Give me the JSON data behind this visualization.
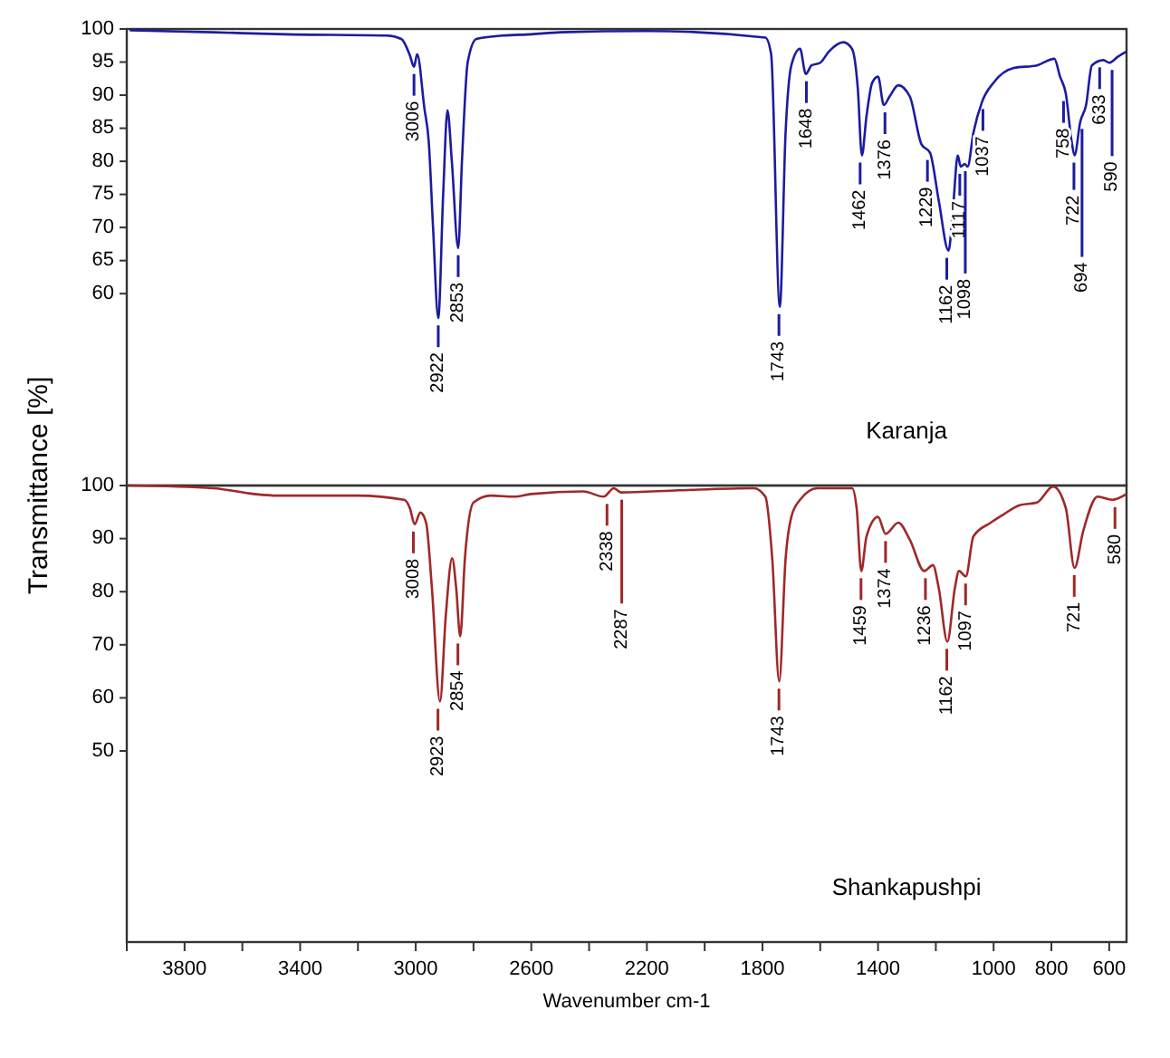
{
  "chart_data": [
    {
      "type": "line",
      "ylabel": "Transmittance [%]",
      "xlim": [
        4000,
        540
      ],
      "ylim": [
        31,
        100
      ],
      "yticks": [
        60,
        65,
        70,
        75,
        80,
        85,
        90,
        95,
        100
      ],
      "tick_labels": "y",
      "series": [
        {
          "color": "#1c1ca0",
          "x": [
            3990,
            3700,
            3450,
            3100,
            3050,
            3020,
            3006,
            2995,
            2970,
            2955,
            2940,
            2922,
            2905,
            2890,
            2875,
            2853,
            2840,
            2820,
            2790,
            2700,
            2600,
            2500,
            2200,
            1790,
            1770,
            1740,
            1720,
            1700,
            1670,
            1650,
            1630,
            1600,
            1570,
            1520,
            1490,
            1470,
            1456,
            1440,
            1420,
            1400,
            1380,
            1360,
            1330,
            1290,
            1250,
            1220,
            1190,
            1156,
            1140,
            1124,
            1114,
            1100,
            1090,
            1070,
            1040,
            1000,
            930,
            850,
            790,
            770,
            750,
            730,
            720,
            700,
            680,
            660,
            620,
            600,
            570,
            540
          ],
          "values": [
            99.8,
            99.5,
            99.2,
            99,
            98.5,
            96,
            94.3,
            96.2,
            88,
            83,
            70,
            56.3,
            75,
            87.7,
            80,
            66.9,
            80,
            95,
            98.5,
            99,
            99.2,
            99.5,
            99.7,
            98.7,
            96.2,
            58,
            84.3,
            94.5,
            97,
            93.2,
            94.5,
            94.9,
            96.6,
            98,
            97,
            91,
            80.9,
            86.8,
            91.9,
            92.8,
            88.5,
            89.8,
            91.5,
            89.8,
            82.6,
            81.3,
            74.1,
            66.5,
            73.2,
            80.9,
            79.2,
            79.6,
            79.2,
            84.3,
            89,
            91.9,
            94.1,
            94.5,
            95.5,
            92.8,
            90.2,
            83,
            80.9,
            86,
            88.5,
            94.5,
            95.3,
            94.9,
            95.8,
            96.6
          ]
        }
      ],
      "annotations": [
        {
          "text": "3006",
          "x": 3006,
          "y": 94.3
        },
        {
          "text": "2922",
          "x": 2922,
          "y": 56.3
        },
        {
          "text": "2853",
          "x": 2853,
          "y": 66.9
        },
        {
          "text": "1743",
          "x": 1743,
          "y": 58
        },
        {
          "text": "1648",
          "x": 1648,
          "y": 93.2
        },
        {
          "text": "1462",
          "x": 1462,
          "y": 80.9
        },
        {
          "text": "1376",
          "x": 1376,
          "y": 88.5
        },
        {
          "text": "1229",
          "x": 1229,
          "y": 81.3
        },
        {
          "text": "1162",
          "x": 1162,
          "y": 66.5
        },
        {
          "text": "1117",
          "x": 1117,
          "y": 79.2
        },
        {
          "text": "1098",
          "x": 1098,
          "y": 79.6
        },
        {
          "text": "1037",
          "x": 1037,
          "y": 89
        },
        {
          "text": "758",
          "x": 758,
          "y": 90.2
        },
        {
          "text": "722",
          "x": 722,
          "y": 80.9
        },
        {
          "text": "694",
          "x": 694,
          "y": 86
        },
        {
          "text": "633",
          "x": 633,
          "y": 95.3
        },
        {
          "text": "590",
          "x": 590,
          "y": 94.9
        },
        "Karanja"
      ]
    },
    {
      "type": "line",
      "xlabel": "Wavenumber cm-1",
      "xlim": [
        4000,
        540
      ],
      "xticks": [
        {
          "value": 4000,
          "label": null
        },
        3800,
        {
          "value": 3600,
          "label": null
        },
        3400,
        {
          "value": 3200,
          "label": null
        },
        3000,
        {
          "value": 2800,
          "label": null
        },
        2600,
        {
          "value": 2400,
          "label": null
        },
        2200,
        {
          "value": 2000,
          "label": null
        },
        1800,
        {
          "value": 1600,
          "label": null
        },
        1400,
        {
          "value": 1200,
          "label": null
        },
        1000,
        800,
        600
      ],
      "ylim": [
        14,
        100
      ],
      "yticks": [
        50,
        60,
        70,
        80,
        90,
        100
      ],
      "series": [
        {
          "color": "#a02828",
          "x": [
            3990,
            3700,
            3560,
            3480,
            3200,
            3040,
            3020,
            3004,
            2984,
            2964,
            2944,
            2916,
            2896,
            2874,
            2860,
            2846,
            2830,
            2800,
            2740,
            2660,
            2600,
            2420,
            2350,
            2314,
            2290,
            2090,
            1830,
            1790,
            1766,
            1742,
            1720,
            1700,
            1670,
            1610,
            1490,
            1474,
            1458,
            1440,
            1400,
            1374,
            1330,
            1290,
            1240,
            1210,
            1190,
            1160,
            1134,
            1120,
            1096,
            1070,
            1010,
            970,
            910,
            850,
            794,
            750,
            720,
            690,
            640,
            590,
            540
          ],
          "values": [
            100,
            99.5,
            98.4,
            98.1,
            98.1,
            97.3,
            95.7,
            92.7,
            94.9,
            93,
            80.7,
            59.3,
            75.4,
            86.3,
            80.7,
            71.6,
            86.1,
            96.8,
            98.1,
            97.9,
            98.4,
            98.9,
            97.9,
            99.5,
            98.7,
            99.1,
            99.5,
            97.9,
            86.1,
            63.1,
            86.1,
            94.1,
            97.3,
            99.5,
            99.5,
            95.7,
            83.9,
            90.4,
            94.1,
            90.9,
            93,
            89.8,
            83.9,
            85,
            80.7,
            70.6,
            80.7,
            83.9,
            82.9,
            90.4,
            93,
            94.4,
            96.3,
            96.8,
            99.8,
            95.7,
            84.5,
            91.4,
            97.9,
            97.3,
            98.4
          ]
        }
      ],
      "annotations": [
        {
          "text": "3008",
          "x": 3008,
          "y": 92.7
        },
        {
          "text": "2923",
          "x": 2923,
          "y": 59.3
        },
        {
          "text": "2854",
          "x": 2854,
          "y": 71.6
        },
        {
          "text": "2338",
          "x": 2338,
          "y": 97.9
        },
        {
          "text": "2287",
          "x": 2287,
          "y": 98.7
        },
        {
          "text": "1743",
          "x": 1743,
          "y": 63.1
        },
        {
          "text": "1459",
          "x": 1459,
          "y": 83.9
        },
        {
          "text": "1374",
          "x": 1374,
          "y": 90.9
        },
        {
          "text": "1236",
          "x": 1236,
          "y": 83.9
        },
        {
          "text": "1162",
          "x": 1162,
          "y": 70.6
        },
        {
          "text": "1097",
          "x": 1097,
          "y": 82.9
        },
        {
          "text": "721",
          "x": 721,
          "y": 84.5
        },
        {
          "text": "580",
          "x": 580,
          "y": 97.3
        },
        "Shankapushpi"
      ]
    }
  ]
}
